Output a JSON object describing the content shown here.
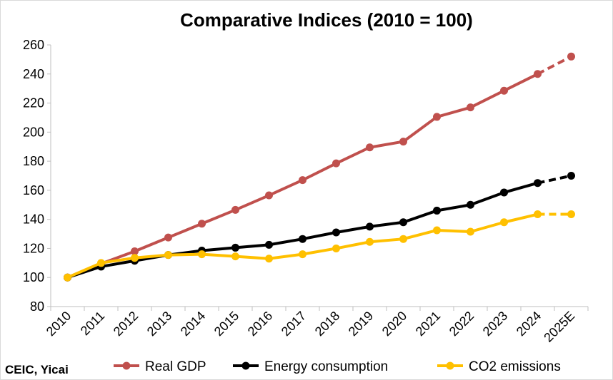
{
  "chart_data": {
    "type": "line",
    "title": "Comparative Indices (2010 = 100)",
    "source": "CEIC, Yicai",
    "categories": [
      "2010",
      "2011",
      "2012",
      "2013",
      "2014",
      "2015",
      "2016",
      "2017",
      "2018",
      "2019",
      "2020",
      "2021",
      "2022",
      "2023",
      "2024",
      "2025E"
    ],
    "ylim": [
      80,
      260
    ],
    "yticks": [
      80,
      100,
      120,
      140,
      160,
      180,
      200,
      220,
      240,
      260
    ],
    "grid": false,
    "legend_position": "bottom",
    "projected_categories": [
      "2025E"
    ],
    "series": [
      {
        "name": "Real GDP",
        "color": "#c0504d",
        "values": [
          100,
          109.5,
          118,
          127.5,
          137,
          146.5,
          156.5,
          167,
          178.5,
          189.5,
          193.5,
          210.5,
          217,
          228.5,
          240,
          252
        ]
      },
      {
        "name": "Energy consumption",
        "color": "#000000",
        "values": [
          100,
          107.5,
          111.5,
          115.5,
          118.5,
          120.5,
          122.5,
          126.5,
          131,
          135,
          138,
          146,
          150,
          158.5,
          165,
          170
        ]
      },
      {
        "name": "CO2 emissions",
        "color": "#ffc000",
        "values": [
          100,
          110,
          113.5,
          115.5,
          116,
          114.5,
          113,
          116,
          120,
          124.5,
          126.5,
          132.5,
          131.5,
          138,
          143.5,
          143.5
        ]
      }
    ]
  }
}
